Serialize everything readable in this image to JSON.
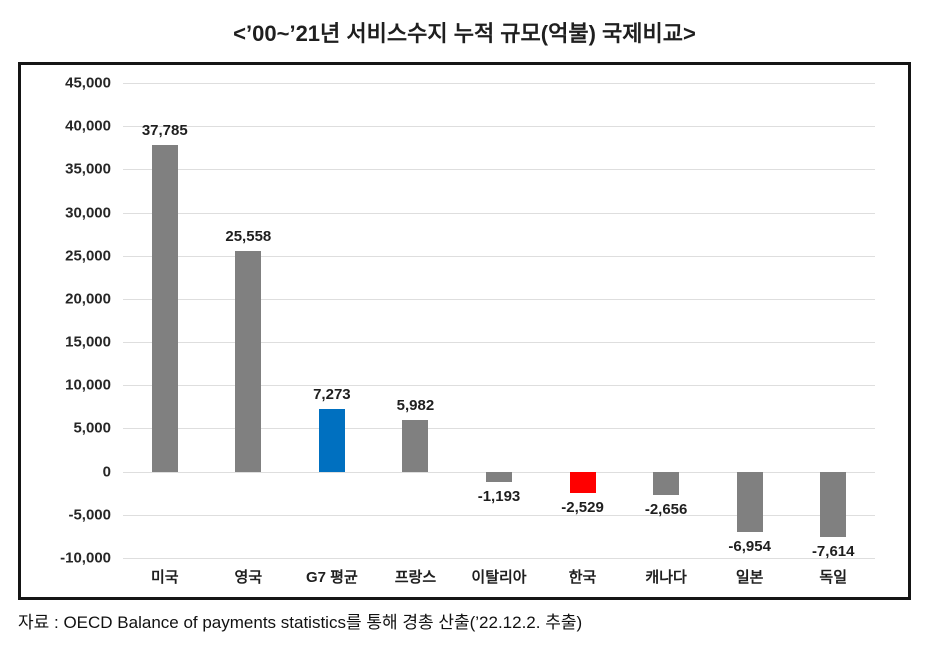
{
  "page": {
    "title": "<’00~’21년 서비스수지 누적 규모(억불) 국제비교>",
    "source_note": "자료 : OECD Balance of payments statistics를 통해 경총 산출(’22.12.2. 추출)"
  },
  "chart_data": {
    "type": "bar",
    "title": "’00~’21년 서비스수지 누적 규모(억불) 국제비교",
    "categories": [
      "미국",
      "영국",
      "G7 평균",
      "프랑스",
      "이탈리아",
      "한국",
      "캐나다",
      "일본",
      "독일"
    ],
    "values": [
      37785,
      25558,
      7273,
      5982,
      -1193,
      -2529,
      -2656,
      -6954,
      -7614
    ],
    "value_labels": [
      "37,785",
      "25,558",
      "7,273",
      "5,982",
      "-1,193",
      "-2,529",
      "-2,656",
      "-6,954",
      "-7,614"
    ],
    "bar_colors": [
      "#808080",
      "#808080",
      "#0070C0",
      "#808080",
      "#808080",
      "#FF0000",
      "#808080",
      "#808080",
      "#808080"
    ],
    "highlight": {
      "g7_average_color": "#0070C0",
      "korea_color": "#FF0000",
      "default_color": "#808080"
    },
    "ylim": [
      -10000,
      45000
    ],
    "ytick_step": 5000,
    "ytick_values": [
      45000,
      40000,
      35000,
      30000,
      25000,
      20000,
      15000,
      10000,
      5000,
      0,
      -5000,
      -10000
    ],
    "ytick_labels": [
      "45,000",
      "40,000",
      "35,000",
      "30,000",
      "25,000",
      "20,000",
      "15,000",
      "10,000",
      "5,000",
      "0",
      "-5,000",
      "-10,000"
    ],
    "grid": true,
    "gridline_color": "#dedede",
    "legend": "none",
    "xlabel": "",
    "ylabel": ""
  }
}
